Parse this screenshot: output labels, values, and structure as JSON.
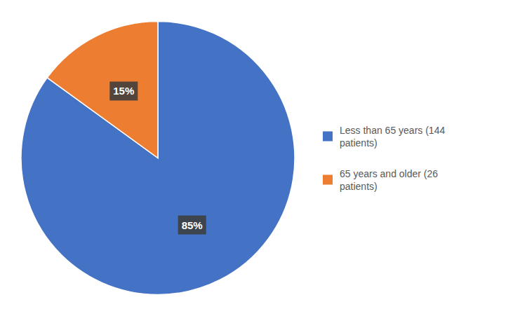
{
  "chart_data": {
    "type": "pie",
    "categories": [
      "Less than 65 years (144\npatients)",
      "65 years and older (26\npatients)"
    ],
    "values": [
      85,
      15
    ],
    "value_labels": [
      "85%",
      "15%"
    ],
    "colors": [
      "#4472C4",
      "#ED7D31"
    ],
    "data_labels": true,
    "legend": "right"
  }
}
